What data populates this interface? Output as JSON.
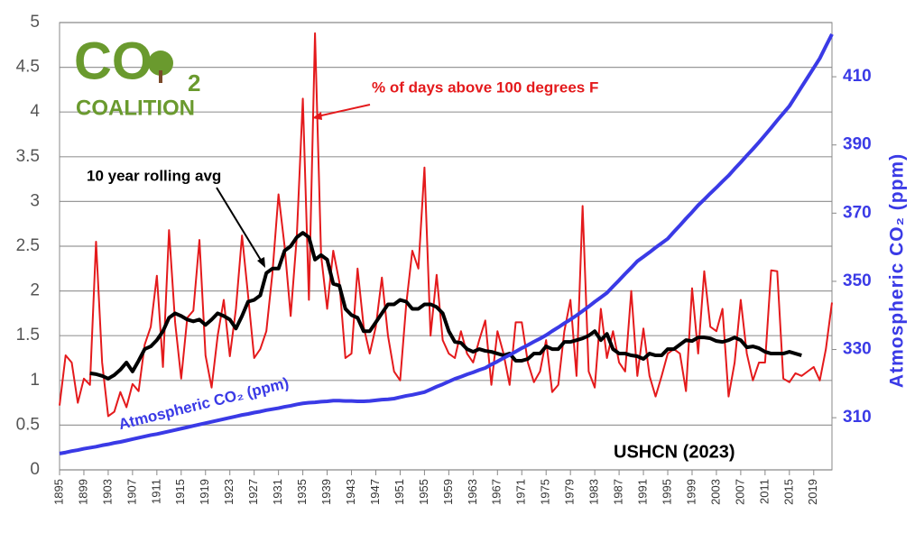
{
  "chart_data": {
    "type": "line",
    "x": [
      1895,
      1896,
      1897,
      1898,
      1899,
      1900,
      1901,
      1902,
      1903,
      1904,
      1905,
      1906,
      1907,
      1908,
      1909,
      1910,
      1911,
      1912,
      1913,
      1914,
      1915,
      1916,
      1917,
      1918,
      1919,
      1920,
      1921,
      1922,
      1923,
      1924,
      1925,
      1926,
      1927,
      1928,
      1929,
      1930,
      1931,
      1932,
      1933,
      1934,
      1935,
      1936,
      1937,
      1938,
      1939,
      1940,
      1941,
      1942,
      1943,
      1944,
      1945,
      1946,
      1947,
      1948,
      1949,
      1950,
      1951,
      1952,
      1953,
      1954,
      1955,
      1956,
      1957,
      1958,
      1959,
      1960,
      1961,
      1962,
      1963,
      1964,
      1965,
      1966,
      1967,
      1968,
      1969,
      1970,
      1971,
      1972,
      1973,
      1974,
      1975,
      1976,
      1977,
      1978,
      1979,
      1980,
      1981,
      1982,
      1983,
      1984,
      1985,
      1986,
      1987,
      1988,
      1989,
      1990,
      1991,
      1992,
      1993,
      1994,
      1995,
      1996,
      1997,
      1998,
      1999,
      2000,
      2001,
      2002,
      2003,
      2004,
      2005,
      2006,
      2007,
      2008,
      2009,
      2010,
      2011,
      2012,
      2013,
      2014,
      2015,
      2016,
      2017,
      2018,
      2019,
      2020,
      2021,
      2022
    ],
    "series": [
      {
        "name": "% of days above 100 degrees F",
        "color": "#e41a1c",
        "values": [
          0.72,
          1.28,
          1.2,
          0.75,
          1.02,
          0.95,
          2.55,
          1.2,
          0.6,
          0.65,
          0.87,
          0.7,
          0.96,
          0.88,
          1.4,
          1.6,
          2.17,
          1.15,
          2.68,
          1.65,
          1.02,
          1.7,
          1.78,
          2.57,
          1.28,
          0.92,
          1.5,
          1.9,
          1.27,
          1.8,
          2.62,
          1.95,
          1.25,
          1.35,
          1.55,
          2.2,
          3.08,
          2.5,
          1.72,
          2.6,
          4.15,
          1.9,
          4.88,
          2.4,
          1.8,
          2.45,
          2.1,
          1.25,
          1.3,
          2.25,
          1.6,
          1.3,
          1.6,
          2.15,
          1.5,
          1.1,
          1.0,
          1.85,
          2.45,
          2.25,
          3.38,
          1.5,
          2.18,
          1.45,
          1.3,
          1.25,
          1.55,
          1.3,
          1.2,
          1.45,
          1.67,
          0.95,
          1.55,
          1.3,
          0.95,
          1.65,
          1.65,
          1.2,
          0.98,
          1.1,
          1.45,
          0.87,
          0.95,
          1.55,
          1.9,
          1.05,
          2.95,
          1.1,
          0.92,
          1.8,
          1.25,
          1.55,
          1.2,
          1.1,
          2.0,
          1.05,
          1.58,
          1.05,
          0.82,
          1.05,
          1.3,
          1.35,
          1.3,
          0.88,
          2.03,
          1.3,
          2.22,
          1.6,
          1.55,
          1.8,
          0.82,
          1.2,
          1.9,
          1.3,
          1.0,
          1.2,
          1.2,
          2.23,
          2.22,
          1.02,
          0.98,
          1.08,
          1.05,
          1.1,
          1.15,
          1.0,
          1.35,
          1.87
        ]
      },
      {
        "name": "10 year rolling avg",
        "color": "#000000",
        "values": [
          null,
          null,
          null,
          null,
          null,
          1.08,
          1.07,
          1.05,
          1.02,
          1.06,
          1.12,
          1.2,
          1.1,
          1.22,
          1.35,
          1.38,
          1.45,
          1.55,
          1.7,
          1.75,
          1.72,
          1.68,
          1.66,
          1.68,
          1.62,
          1.68,
          1.75,
          1.72,
          1.68,
          1.58,
          1.72,
          1.88,
          1.9,
          1.95,
          2.2,
          2.25,
          2.25,
          2.45,
          2.5,
          2.6,
          2.65,
          2.6,
          2.35,
          2.4,
          2.35,
          2.08,
          2.06,
          1.8,
          1.73,
          1.7,
          1.55,
          1.55,
          1.65,
          1.75,
          1.85,
          1.85,
          1.9,
          1.88,
          1.8,
          1.8,
          1.85,
          1.85,
          1.82,
          1.75,
          1.55,
          1.43,
          1.42,
          1.35,
          1.32,
          1.35,
          1.33,
          1.32,
          1.3,
          1.28,
          1.3,
          1.22,
          1.22,
          1.24,
          1.3,
          1.3,
          1.38,
          1.35,
          1.35,
          1.43,
          1.43,
          1.45,
          1.47,
          1.5,
          1.55,
          1.45,
          1.52,
          1.35,
          1.3,
          1.3,
          1.28,
          1.27,
          1.24,
          1.3,
          1.28,
          1.28,
          1.35,
          1.35,
          1.4,
          1.45,
          1.44,
          1.48,
          1.48,
          1.47,
          1.44,
          1.43,
          1.45,
          1.48,
          1.45,
          1.37,
          1.38,
          1.36,
          1.32,
          1.3,
          1.3,
          1.3,
          1.32,
          1.3,
          1.28,
          null,
          null,
          null,
          null,
          null
        ]
      },
      {
        "name": "Atmospheric CO₂ (ppm)",
        "color": "#3a3ae6",
        "axis": "y2",
        "values": [
          299.5,
          299.8,
          300.2,
          300.5,
          300.9,
          301.2,
          301.5,
          301.9,
          302.2,
          302.6,
          302.9,
          303.3,
          303.7,
          304.1,
          304.5,
          304.9,
          305.2,
          305.6,
          306.0,
          306.4,
          306.8,
          307.2,
          307.6,
          308.0,
          308.4,
          308.8,
          309.2,
          309.6,
          310.0,
          310.4,
          310.8,
          311.1,
          311.5,
          311.8,
          312.2,
          312.5,
          312.8,
          313.2,
          313.5,
          313.9,
          314.2,
          314.4,
          314.5,
          314.7,
          314.8,
          315.0,
          315.0,
          314.9,
          314.9,
          314.8,
          314.8,
          314.9,
          315.1,
          315.3,
          315.4,
          315.6,
          316.0,
          316.4,
          316.7,
          317.1,
          317.5,
          318.3,
          319.1,
          319.8,
          320.6,
          321.4,
          322.0,
          322.7,
          323.3,
          324.0,
          324.6,
          325.6,
          326.5,
          327.5,
          328.4,
          329.4,
          330.4,
          331.3,
          332.3,
          333.2,
          334.2,
          335.4,
          336.5,
          337.7,
          338.8,
          340.0,
          341.3,
          342.6,
          344.0,
          345.3,
          346.6,
          348.5,
          350.3,
          352.2,
          354.0,
          355.9,
          357.2,
          358.5,
          359.9,
          361.2,
          362.5,
          364.5,
          366.4,
          368.4,
          370.3,
          372.3,
          374.0,
          375.8,
          377.5,
          379.3,
          381.0,
          383.0,
          384.9,
          386.9,
          388.8,
          390.8,
          392.9,
          395.0,
          397.2,
          399.3,
          401.4,
          404.2,
          407.0,
          409.8,
          412.6,
          415.4,
          419.0,
          422.5
        ]
      }
    ],
    "xlim": [
      1895,
      2022
    ],
    "xticks": [
      1895,
      1899,
      1903,
      1907,
      1911,
      1915,
      1919,
      1923,
      1927,
      1931,
      1935,
      1939,
      1943,
      1947,
      1951,
      1955,
      1959,
      1963,
      1967,
      1971,
      1975,
      1979,
      1983,
      1987,
      1991,
      1995,
      1999,
      2003,
      2007,
      2011,
      2015,
      2019
    ],
    "ylim": [
      0,
      5
    ],
    "yticks": [
      0,
      0.5,
      1,
      1.5,
      2,
      2.5,
      3,
      3.5,
      4,
      4.5,
      5
    ],
    "y2lim": [
      294.7,
      425.9
    ],
    "y2ticks": [
      310,
      330,
      350,
      370,
      390,
      410
    ],
    "y2label": "Atmospheric CO₂ (ppm)",
    "source": "USHCN (2023)",
    "grid": true,
    "logo": {
      "mark": "CO",
      "sub": "2",
      "name": "COALITION"
    }
  }
}
